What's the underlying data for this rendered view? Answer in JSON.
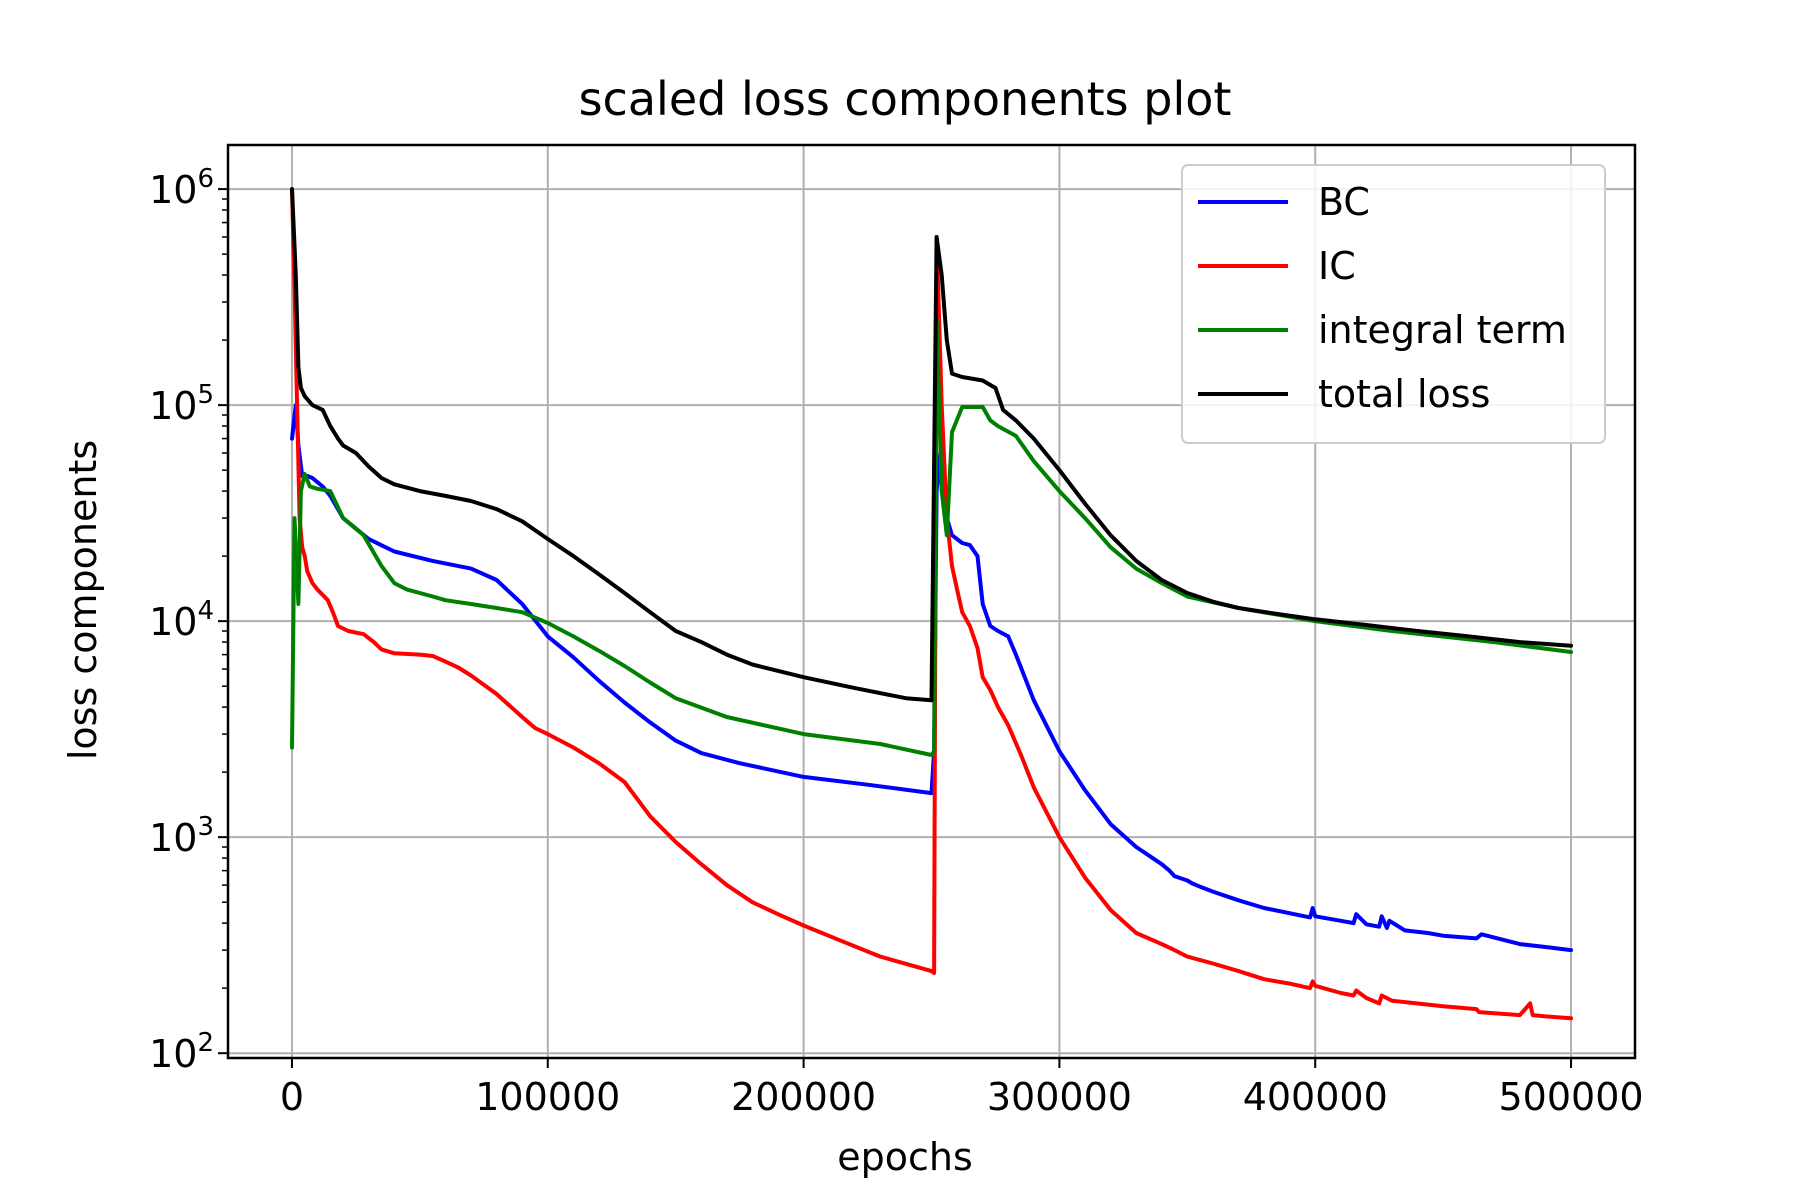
{
  "chart_data": {
    "type": "line",
    "title": "scaled loss components plot",
    "xlabel": "epochs",
    "ylabel": "loss components",
    "xlim": [
      -25000,
      525000
    ],
    "ylim": [
      95,
      1600000
    ],
    "yscale": "log",
    "grid": true,
    "legend_position": "top-right",
    "x_ticks": [
      {
        "value": 0,
        "label": "0"
      },
      {
        "value": 100000,
        "label": "100000"
      },
      {
        "value": 200000,
        "label": "200000"
      },
      {
        "value": 300000,
        "label": "300000"
      },
      {
        "value": 400000,
        "label": "400000"
      },
      {
        "value": 500000,
        "label": "500000"
      }
    ],
    "y_ticks": [
      {
        "value": 100,
        "base": "10",
        "exp": "2"
      },
      {
        "value": 1000,
        "base": "10",
        "exp": "3"
      },
      {
        "value": 10000,
        "base": "10",
        "exp": "4"
      },
      {
        "value": 100000,
        "base": "10",
        "exp": "5"
      },
      {
        "value": 1000000,
        "base": "10",
        "exp": "6"
      }
    ],
    "series": [
      {
        "name": "BC",
        "color": "#0000ff",
        "x": [
          0,
          1500,
          2500,
          4000,
          6000,
          8000,
          12000,
          15000,
          20000,
          30000,
          40000,
          55000,
          70000,
          80000,
          90000,
          100000,
          110000,
          120000,
          130000,
          140000,
          150000,
          160000,
          175000,
          200000,
          225000,
          250000,
          251000,
          252000,
          254000,
          256000,
          258000,
          262000,
          265000,
          268000,
          270000,
          273000,
          276000,
          280000,
          283000,
          290000,
          300000,
          310000,
          320000,
          330000,
          340000,
          343000,
          345000,
          350000,
          352000,
          355000,
          360000,
          370000,
          380000,
          398000,
          399000,
          400000,
          410000,
          415000,
          416000,
          420000,
          425000,
          426000,
          428000,
          429000,
          435000,
          444000,
          450000,
          463000,
          465000,
          480000,
          490000,
          500000
        ],
        "values": [
          70000,
          100000,
          65000,
          47000,
          47000,
          46000,
          42000,
          38000,
          30000,
          24000,
          21000,
          19000,
          17500,
          15500,
          12000,
          8500,
          6800,
          5300,
          4200,
          3400,
          2800,
          2450,
          2200,
          1900,
          1750,
          1600,
          2500,
          40000,
          70000,
          30000,
          25000,
          23000,
          22500,
          20000,
          12000,
          9500,
          9000,
          8500,
          7000,
          4300,
          2500,
          1650,
          1150,
          900,
          750,
          700,
          660,
          630,
          610,
          590,
          560,
          510,
          470,
          425,
          470,
          430,
          410,
          400,
          440,
          395,
          385,
          430,
          380,
          410,
          370,
          360,
          350,
          340,
          355,
          320,
          310,
          300
        ]
      },
      {
        "name": "IC",
        "color": "#ff0000",
        "x": [
          0,
          1000,
          2000,
          3000,
          4000,
          5000,
          6000,
          8000,
          10000,
          14000,
          16000,
          18000,
          22000,
          28000,
          32000,
          35000,
          40000,
          50000,
          55000,
          60000,
          65000,
          70000,
          80000,
          90000,
          95000,
          100000,
          110000,
          120000,
          130000,
          135000,
          140000,
          150000,
          160000,
          170000,
          180000,
          190000,
          200000,
          215000,
          230000,
          250000,
          251000,
          252000,
          254000,
          256000,
          258000,
          260000,
          262000,
          265000,
          268000,
          270000,
          273000,
          276000,
          280000,
          285000,
          290000,
          300000,
          310000,
          320000,
          330000,
          340000,
          345000,
          350000,
          360000,
          370000,
          380000,
          390000,
          398000,
          399000,
          400000,
          410000,
          415000,
          416000,
          420000,
          425000,
          426000,
          430000,
          450000,
          463000,
          464000,
          480000,
          484000,
          485000,
          490000,
          500000
        ],
        "values": [
          1000000,
          350000,
          100000,
          30000,
          22000,
          20000,
          17000,
          15000,
          14000,
          12500,
          11000,
          9500,
          9000,
          8700,
          8000,
          7400,
          7100,
          7000,
          6900,
          6500,
          6100,
          5600,
          4600,
          3600,
          3200,
          3000,
          2600,
          2200,
          1800,
          1500,
          1250,
          950,
          750,
          600,
          500,
          440,
          390,
          330,
          280,
          240,
          235,
          600000,
          100000,
          30000,
          18000,
          14000,
          11000,
          9500,
          7500,
          5500,
          4800,
          4000,
          3300,
          2400,
          1700,
          1000,
          650,
          460,
          360,
          320,
          300,
          280,
          260,
          240,
          220,
          210,
          200,
          215,
          205,
          190,
          185,
          195,
          180,
          170,
          185,
          175,
          165,
          160,
          155,
          150,
          170,
          150,
          148,
          145
        ]
      },
      {
        "name": "integral term",
        "color": "#008000",
        "x": [
          0,
          1000,
          2500,
          3500,
          5000,
          7000,
          10000,
          15000,
          20000,
          28000,
          35000,
          40000,
          45000,
          55000,
          60000,
          70000,
          80000,
          90000,
          100000,
          110000,
          120000,
          130000,
          140000,
          150000,
          170000,
          200000,
          230000,
          250000,
          251000,
          252000,
          254000,
          256000,
          258000,
          262000,
          270000,
          273000,
          276000,
          283000,
          290000,
          300000,
          310000,
          320000,
          330000,
          340000,
          350000,
          370000,
          400000,
          430000,
          470000,
          500000
        ],
        "values": [
          2600,
          30000,
          12000,
          40000,
          48000,
          42000,
          41000,
          40000,
          30000,
          25000,
          18000,
          15000,
          14000,
          13000,
          12500,
          12000,
          11500,
          11000,
          9800,
          8500,
          7300,
          6200,
          5200,
          4400,
          3600,
          3000,
          2700,
          2400,
          2500,
          250000,
          40000,
          25000,
          75000,
          98000,
          98000,
          85000,
          80000,
          72000,
          55000,
          40000,
          30000,
          22000,
          17500,
          15000,
          13000,
          11500,
          10000,
          9000,
          8000,
          7200
        ]
      },
      {
        "name": "total loss",
        "color": "#000000",
        "x": [
          0,
          1500,
          2500,
          3500,
          5000,
          8000,
          12000,
          15000,
          18000,
          20000,
          25000,
          30000,
          35000,
          40000,
          50000,
          60000,
          70000,
          80000,
          90000,
          100000,
          110000,
          120000,
          130000,
          140000,
          150000,
          160000,
          170000,
          180000,
          200000,
          220000,
          240000,
          250000,
          252000,
          254000,
          256000,
          258000,
          262000,
          270000,
          275000,
          278000,
          283000,
          290000,
          300000,
          310000,
          320000,
          330000,
          340000,
          350000,
          360000,
          370000,
          385000,
          400000,
          420000,
          440000,
          460000,
          480000,
          500000
        ],
        "values": [
          1000000,
          400000,
          150000,
          120000,
          110000,
          100000,
          95000,
          80000,
          70000,
          65000,
          60000,
          52000,
          46000,
          43000,
          40000,
          38000,
          36000,
          33000,
          29000,
          24000,
          20000,
          16500,
          13500,
          11000,
          9000,
          8000,
          7000,
          6300,
          5500,
          4900,
          4400,
          4300,
          600000,
          400000,
          200000,
          140000,
          135000,
          130000,
          120000,
          95000,
          85000,
          70000,
          50000,
          35000,
          25000,
          19000,
          15500,
          13500,
          12300,
          11500,
          10800,
          10200,
          9600,
          9000,
          8500,
          8000,
          7700
        ]
      }
    ]
  }
}
